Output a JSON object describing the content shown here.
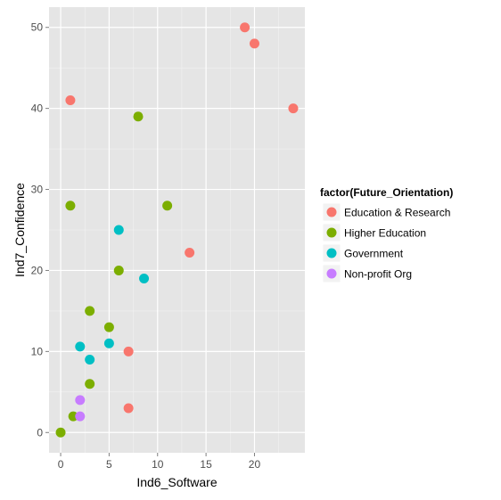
{
  "chart_data": {
    "type": "scatter",
    "title": "",
    "xlabel": "Ind6_Software",
    "ylabel": "Ind7_Confidence",
    "xlim": [
      -1.2,
      25.2
    ],
    "ylim": [
      -2.5,
      52.5
    ],
    "xticks": [
      0,
      5,
      10,
      15,
      20
    ],
    "yticks": [
      0,
      10,
      20,
      30,
      40,
      50
    ],
    "grid": true,
    "legend": {
      "title": "factor(Future_Orientation)",
      "position": "right"
    },
    "series": [
      {
        "name": "Education & Research",
        "color": "#F8766D",
        "points": [
          [
            1,
            41
          ],
          [
            19,
            50
          ],
          [
            20,
            48
          ],
          [
            24,
            40
          ],
          [
            13.3,
            22.2
          ],
          [
            7,
            10
          ],
          [
            7,
            3
          ]
        ]
      },
      {
        "name": "Higher Education",
        "color": "#7CAE00",
        "points": [
          [
            8,
            39
          ],
          [
            1,
            28
          ],
          [
            11,
            28
          ],
          [
            6,
            20
          ],
          [
            3,
            15
          ],
          [
            5,
            13
          ],
          [
            3,
            6
          ],
          [
            1.3,
            2
          ],
          [
            0,
            0
          ]
        ]
      },
      {
        "name": "Government",
        "color": "#00BFC4",
        "points": [
          [
            6,
            25
          ],
          [
            8.6,
            19
          ],
          [
            2,
            10.6
          ],
          [
            5,
            11
          ],
          [
            3,
            9
          ]
        ]
      },
      {
        "name": "Non-profit Org",
        "color": "#C77CFF",
        "points": [
          [
            2,
            4
          ],
          [
            2,
            2
          ]
        ]
      }
    ]
  }
}
